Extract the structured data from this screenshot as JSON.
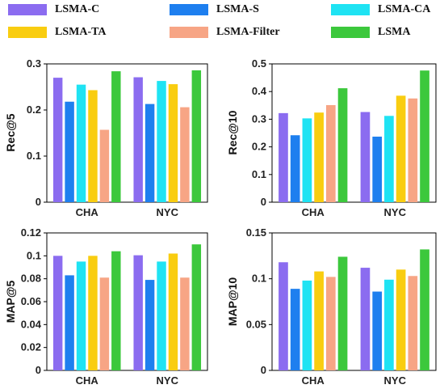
{
  "legend": [
    {
      "name": "LSMA-C",
      "color": "#8B6CF0"
    },
    {
      "name": "LSMA-S",
      "color": "#1E7FEF"
    },
    {
      "name": "LSMA-CA",
      "color": "#1FE3F3"
    },
    {
      "name": "LSMA-TA",
      "color": "#F9CD10"
    },
    {
      "name": "LSMA-Filter",
      "color": "#F7A585"
    },
    {
      "name": "LSMA",
      "color": "#3CC83C"
    }
  ],
  "chart_data": [
    {
      "type": "bar",
      "categories": [
        "CHA",
        "NYC"
      ],
      "ylabel": "Rec@5",
      "ylim": [
        0,
        0.3
      ],
      "yticks": [
        "0",
        "0.1",
        "0.2",
        "0.3"
      ],
      "ytick_values": [
        0,
        0.1,
        0.2,
        0.3
      ],
      "series": [
        {
          "name": "LSMA-C",
          "values": [
            0.27,
            0.271
          ]
        },
        {
          "name": "LSMA-S",
          "values": [
            0.218,
            0.213
          ]
        },
        {
          "name": "LSMA-CA",
          "values": [
            0.255,
            0.263
          ]
        },
        {
          "name": "LSMA-TA",
          "values": [
            0.243,
            0.256
          ]
        },
        {
          "name": "LSMA-Filter",
          "values": [
            0.157,
            0.206
          ]
        },
        {
          "name": "LSMA",
          "values": [
            0.284,
            0.286
          ]
        }
      ]
    },
    {
      "type": "bar",
      "categories": [
        "CHA",
        "NYC"
      ],
      "ylabel": "Rec@10",
      "ylim": [
        0,
        0.5
      ],
      "yticks": [
        "0",
        "0.1",
        "0.2",
        "0.3",
        "0.4",
        "0.5"
      ],
      "ytick_values": [
        0,
        0.1,
        0.2,
        0.3,
        0.4,
        0.5
      ],
      "series": [
        {
          "name": "LSMA-C",
          "values": [
            0.322,
            0.326
          ]
        },
        {
          "name": "LSMA-S",
          "values": [
            0.242,
            0.237
          ]
        },
        {
          "name": "LSMA-CA",
          "values": [
            0.303,
            0.312
          ]
        },
        {
          "name": "LSMA-TA",
          "values": [
            0.324,
            0.385
          ]
        },
        {
          "name": "LSMA-Filter",
          "values": [
            0.351,
            0.375
          ]
        },
        {
          "name": "LSMA",
          "values": [
            0.412,
            0.476
          ]
        }
      ]
    },
    {
      "type": "bar",
      "categories": [
        "CHA",
        "NYC"
      ],
      "ylabel": "MAP@5",
      "ylim": [
        0,
        0.12
      ],
      "yticks": [
        "0",
        "0.02",
        "0.04",
        "0.06",
        "0.08",
        "0.1",
        "0.12"
      ],
      "ytick_values": [
        0,
        0.02,
        0.04,
        0.06,
        0.08,
        0.1,
        0.12
      ],
      "series": [
        {
          "name": "LSMA-C",
          "values": [
            0.1,
            0.1005
          ]
        },
        {
          "name": "LSMA-S",
          "values": [
            0.083,
            0.079
          ]
        },
        {
          "name": "LSMA-CA",
          "values": [
            0.095,
            0.095
          ]
        },
        {
          "name": "LSMA-TA",
          "values": [
            0.1,
            0.102
          ]
        },
        {
          "name": "LSMA-Filter",
          "values": [
            0.081,
            0.081
          ]
        },
        {
          "name": "LSMA",
          "values": [
            0.104,
            0.11
          ]
        }
      ]
    },
    {
      "type": "bar",
      "categories": [
        "CHA",
        "NYC"
      ],
      "ylabel": "MAP@10",
      "ylim": [
        0,
        0.15
      ],
      "yticks": [
        "0",
        "0.05",
        "0.1",
        "0.15"
      ],
      "ytick_values": [
        0,
        0.05,
        0.1,
        0.15
      ],
      "series": [
        {
          "name": "LSMA-C",
          "values": [
            0.118,
            0.112
          ]
        },
        {
          "name": "LSMA-S",
          "values": [
            0.089,
            0.086
          ]
        },
        {
          "name": "LSMA-CA",
          "values": [
            0.098,
            0.099
          ]
        },
        {
          "name": "LSMA-TA",
          "values": [
            0.108,
            0.11
          ]
        },
        {
          "name": "LSMA-Filter",
          "values": [
            0.102,
            0.103
          ]
        },
        {
          "name": "LSMA",
          "values": [
            0.124,
            0.132
          ]
        }
      ]
    }
  ]
}
